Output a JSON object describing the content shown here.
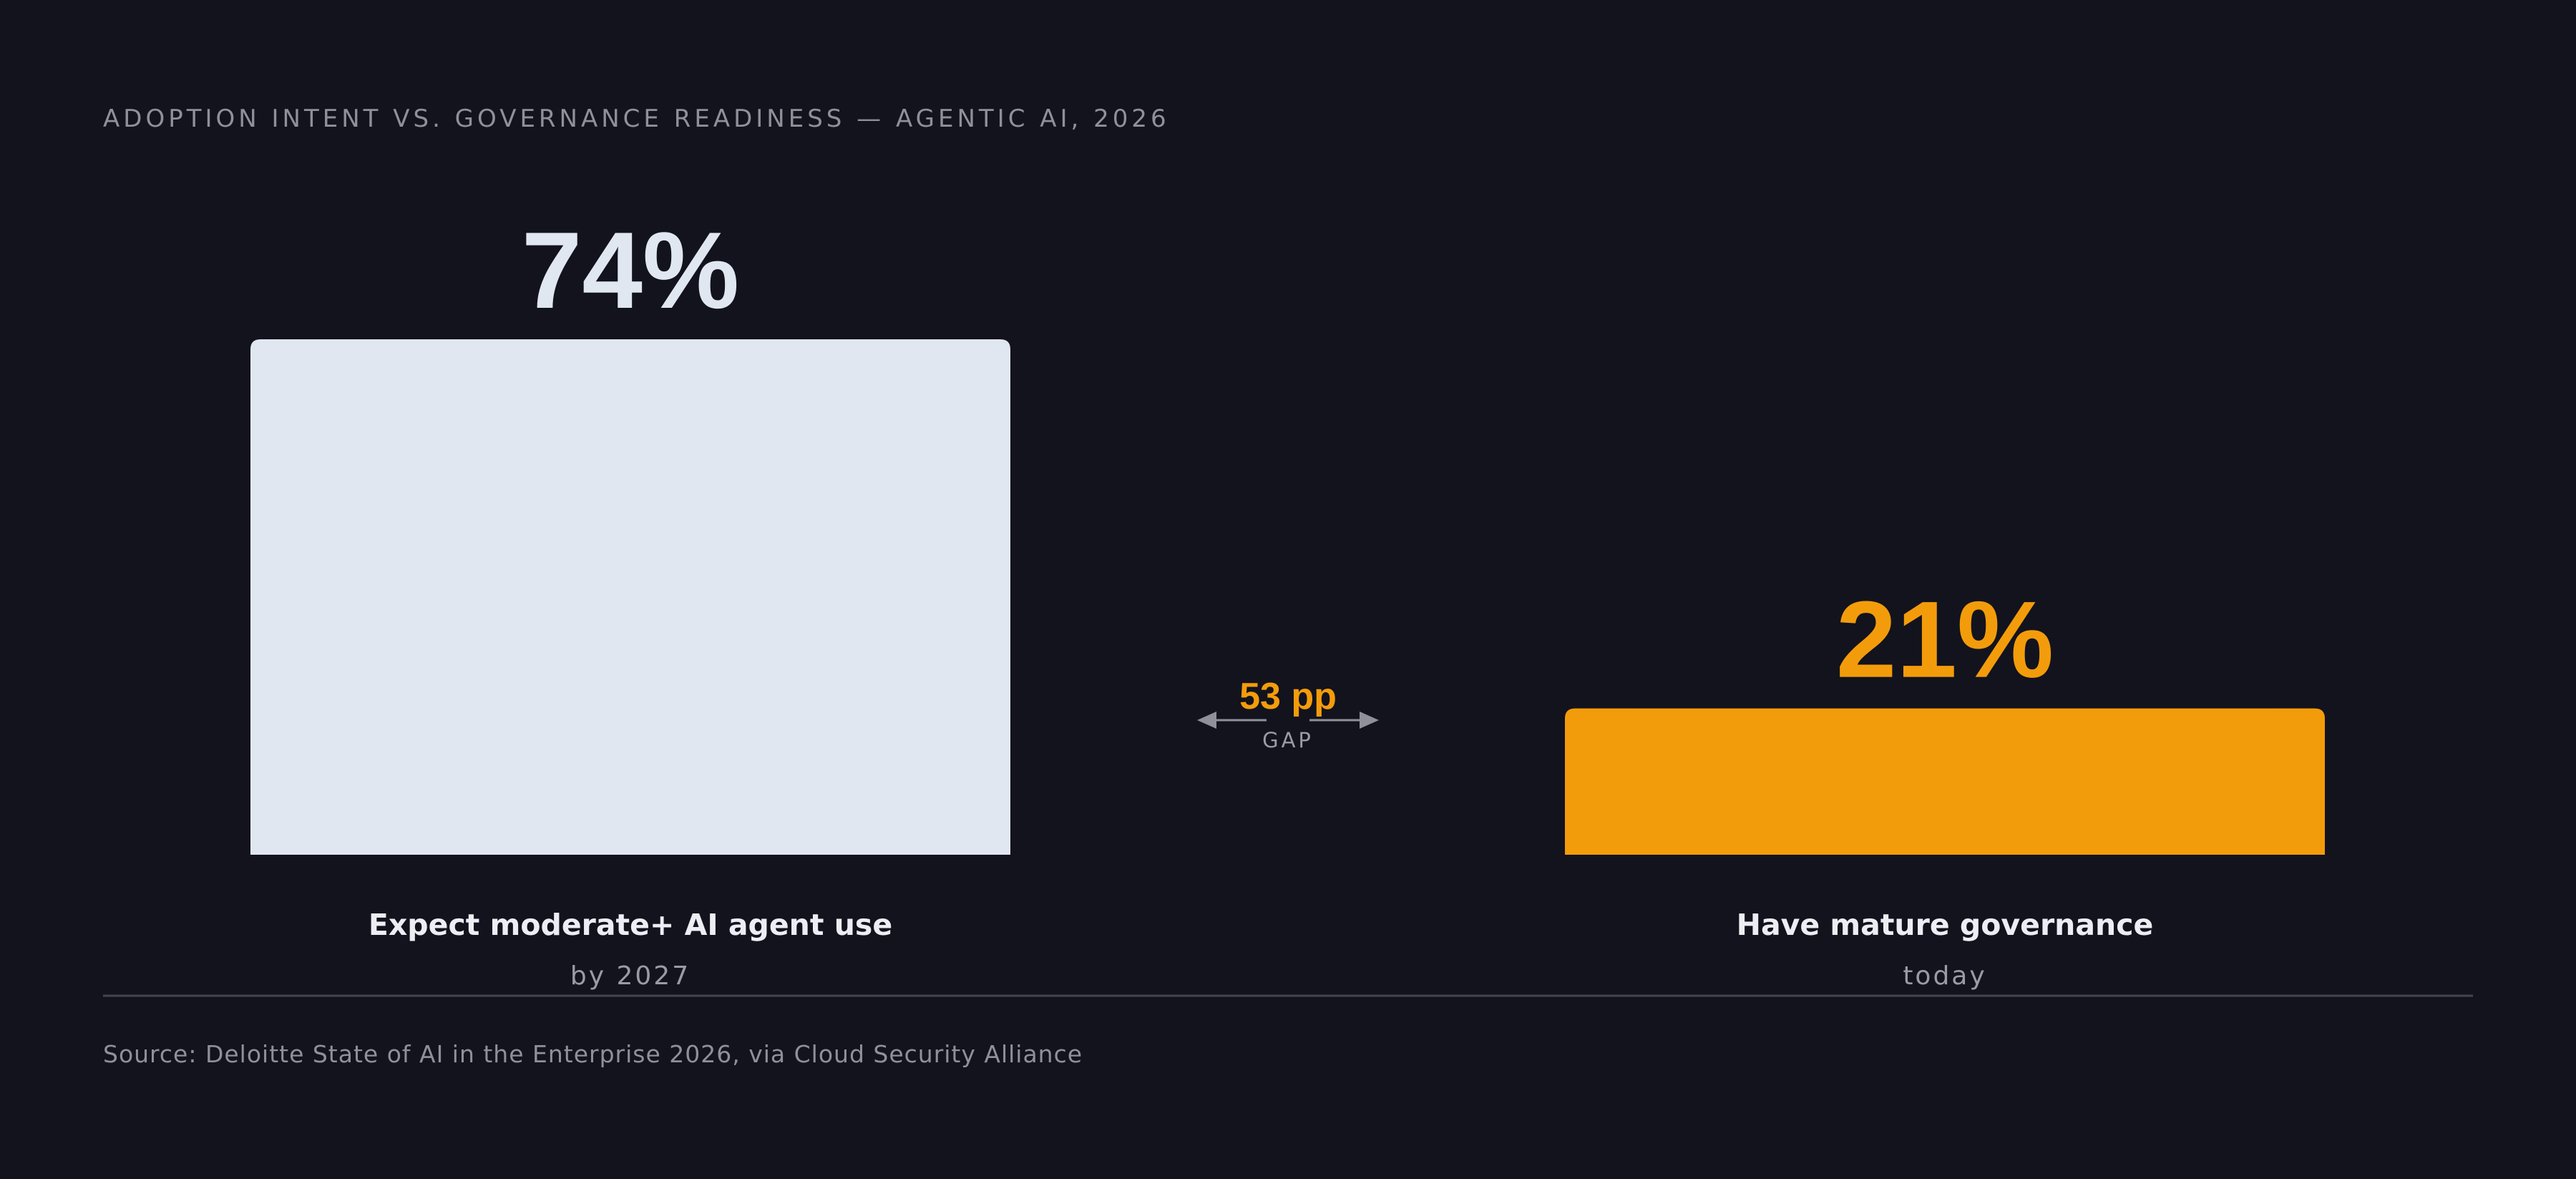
{
  "chart_data": {
    "type": "bar",
    "title": "ADOPTION INTENT VS. GOVERNANCE READINESS — AGENTIC AI, 2026",
    "ylim": [
      0,
      74
    ],
    "grid": false,
    "bars": [
      {
        "value": 74,
        "value_label": "74%",
        "label": "Expect moderate+ AI agent use",
        "sublabel": "by 2027",
        "color": "#e1e7f0"
      },
      {
        "value": 21,
        "value_label": "21%",
        "label": "Have mature governance",
        "sublabel": "today",
        "color": "#f39c0b"
      }
    ],
    "gap": {
      "value": 53,
      "label": "53 pp",
      "sublabel": "GAP",
      "color": "#f39c0b"
    },
    "source": "Source: Deloitte State of AI in the Enterprise 2026, via Cloud Security Alliance"
  }
}
